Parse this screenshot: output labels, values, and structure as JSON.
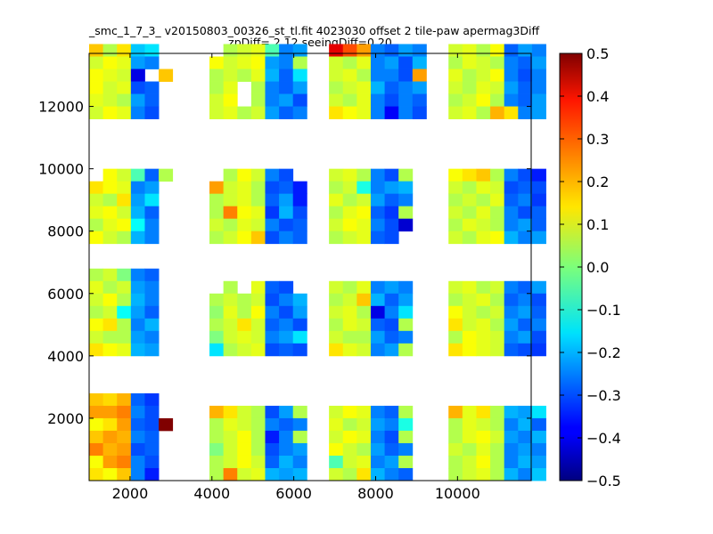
{
  "chart_data": {
    "type": "heatmap",
    "title": "_smc_1_7_3_ v20150803_00326_st_tl.fit 4023030 offset 2 tile-paw apermag3Diff",
    "subtitle": "zpDiff= 2.12 seeingDiff=0.20",
    "xlabel": "",
    "ylabel": "",
    "xlim": [
      1000,
      11800
    ],
    "ylim": [
      0,
      13700
    ],
    "x_ticks": [
      2000,
      4000,
      6000,
      8000,
      10000
    ],
    "y_ticks": [
      2000,
      4000,
      6000,
      8000,
      10000,
      12000
    ],
    "colorbar": {
      "range": [
        -0.5,
        0.5
      ],
      "ticks": [
        "0.5",
        "0.4",
        "0.3",
        "0.2",
        "0.1",
        "0.0",
        "−0.1",
        "−0.2",
        "−0.3",
        "−0.4",
        "−0.5"
      ],
      "colormap": "jet"
    },
    "grid": false,
    "cell_size": [
      340,
      400
    ],
    "chip_columns_x0": [
      1000,
      3940,
      6860,
      9780
    ],
    "chip_rows_y0": [
      0,
      4000,
      7600,
      11600
    ],
    "chips": [
      {
        "col": 0,
        "row": 0,
        "values": [
          [
            0.18,
            0.16,
            0.2,
            -0.28,
            -0.32,
            null
          ],
          [
            0.22,
            0.22,
            0.25,
            -0.25,
            -0.3,
            null
          ],
          [
            0.12,
            0.15,
            0.22,
            -0.28,
            -0.3,
            0.5
          ],
          [
            0.18,
            0.22,
            0.2,
            -0.25,
            -0.28,
            null
          ],
          [
            0.25,
            0.2,
            0.22,
            -0.3,
            -0.28,
            null
          ],
          [
            0.12,
            0.22,
            0.25,
            -0.25,
            -0.3,
            null
          ],
          [
            0.15,
            0.12,
            0.18,
            -0.25,
            -0.35,
            null
          ]
        ]
      },
      {
        "col": 0,
        "row": 1,
        "values": [
          [
            0.05,
            0.08,
            0.0,
            -0.25,
            -0.28,
            null
          ],
          [
            0.1,
            0.05,
            0.08,
            -0.22,
            -0.25,
            null
          ],
          [
            0.08,
            0.12,
            0.05,
            -0.2,
            -0.25,
            null
          ],
          [
            0.05,
            0.08,
            -0.12,
            -0.22,
            -0.28,
            null
          ],
          [
            0.12,
            0.15,
            0.05,
            -0.25,
            -0.2,
            null
          ],
          [
            0.08,
            0.05,
            0.05,
            -0.22,
            -0.25,
            null
          ],
          [
            0.15,
            0.12,
            0.1,
            -0.2,
            -0.22,
            null
          ]
        ]
      },
      {
        "col": 0,
        "row": 2,
        "values": [
          [
            null,
            0.12,
            0.08,
            -0.05,
            -0.28,
            0.05
          ],
          [
            0.15,
            0.12,
            0.1,
            -0.25,
            -0.22,
            null
          ],
          [
            0.08,
            0.05,
            0.15,
            -0.22,
            -0.15,
            null
          ],
          [
            0.1,
            0.12,
            0.08,
            -0.2,
            -0.28,
            null
          ],
          [
            0.05,
            0.1,
            0.12,
            -0.12,
            -0.25,
            null
          ],
          [
            0.12,
            0.08,
            0.05,
            -0.2,
            -0.25,
            null
          ]
        ]
      },
      {
        "col": 0,
        "row": 3,
        "values": [
          [
            0.18,
            0.05,
            0.15,
            -0.18,
            -0.15,
            null
          ],
          [
            0.08,
            0.12,
            0.1,
            -0.22,
            -0.25,
            null
          ],
          [
            0.12,
            0.1,
            0.08,
            -0.4,
            null,
            0.18
          ],
          [
            0.12,
            0.08,
            0.1,
            -0.3,
            -0.28,
            null
          ],
          [
            0.1,
            0.08,
            0.05,
            -0.22,
            -0.28,
            null
          ],
          [
            0.08,
            0.12,
            0.1,
            -0.25,
            -0.3,
            null
          ]
        ]
      },
      {
        "col": 1,
        "row": 0,
        "values": [
          [
            0.2,
            0.15,
            0.08,
            0.05,
            -0.3,
            -0.22,
            0.05
          ],
          [
            0.05,
            0.1,
            0.08,
            0.05,
            -0.25,
            -0.28,
            -0.25
          ],
          [
            0.05,
            0.08,
            0.12,
            0.05,
            -0.35,
            -0.25,
            0.05
          ],
          [
            0.0,
            0.08,
            0.12,
            0.05,
            -0.3,
            -0.25,
            -0.22
          ],
          [
            0.05,
            0.08,
            0.12,
            0.08,
            -0.28,
            -0.2,
            -0.25
          ],
          [
            0.05,
            0.25,
            0.08,
            0.1,
            -0.2,
            -0.22,
            -0.2
          ]
        ]
      },
      {
        "col": 1,
        "row": 1,
        "values": [
          [
            null,
            0.05,
            null,
            0.1,
            -0.28,
            -0.3,
            null
          ],
          [
            0.05,
            0.08,
            0.05,
            0.08,
            -0.3,
            -0.25,
            -0.2
          ],
          [
            0.02,
            0.1,
            0.05,
            0.12,
            -0.25,
            -0.3,
            -0.22
          ],
          [
            0.05,
            0.08,
            0.15,
            0.08,
            -0.28,
            -0.25,
            -0.3
          ],
          [
            0.0,
            0.08,
            0.1,
            0.08,
            -0.25,
            -0.22,
            -0.15
          ],
          [
            -0.15,
            0.05,
            0.08,
            0.1,
            -0.3,
            -0.28,
            -0.3
          ]
        ]
      },
      {
        "col": 1,
        "row": 2,
        "values": [
          [
            null,
            0.05,
            0.12,
            0.08,
            -0.25,
            -0.3,
            null
          ],
          [
            0.22,
            0.08,
            0.1,
            0.05,
            -0.3,
            -0.28,
            -0.35
          ],
          [
            0.05,
            0.08,
            0.1,
            0.05,
            -0.28,
            -0.22,
            -0.35
          ],
          [
            0.05,
            0.25,
            0.12,
            0.1,
            -0.32,
            -0.2,
            -0.3
          ],
          [
            0.08,
            0.05,
            0.1,
            0.08,
            -0.25,
            -0.3,
            -0.28
          ],
          [
            0.05,
            0.08,
            0.12,
            0.18,
            -0.3,
            -0.25,
            -0.28
          ]
        ]
      },
      {
        "col": 1,
        "row": 3,
        "values": [
          [
            null,
            0.05,
            0.08,
            0.1,
            -0.05,
            -0.25,
            -0.22
          ],
          [
            0.12,
            0.08,
            0.1,
            0.12,
            -0.22,
            -0.25,
            0.05
          ],
          [
            0.05,
            0.08,
            0.05,
            0.1,
            -0.2,
            -0.28,
            -0.15
          ],
          [
            0.05,
            0.1,
            null,
            0.05,
            -0.25,
            -0.28,
            -0.22
          ],
          [
            0.08,
            0.12,
            null,
            0.05,
            -0.25,
            -0.22,
            -0.3
          ],
          [
            0.08,
            0.1,
            0.05,
            0.08,
            -0.22,
            -0.28,
            -0.25
          ]
        ]
      },
      {
        "col": 2,
        "row": 0,
        "values": [
          [
            0.08,
            0.12,
            0.1,
            -0.25,
            -0.28,
            0.05,
            null
          ],
          [
            0.1,
            0.05,
            0.08,
            -0.22,
            -0.25,
            -0.1,
            null
          ],
          [
            0.08,
            0.12,
            0.1,
            -0.25,
            -0.3,
            0.05,
            null
          ],
          [
            0.12,
            0.08,
            0.05,
            -0.22,
            -0.28,
            -0.25,
            null
          ],
          [
            -0.05,
            0.08,
            0.1,
            -0.25,
            -0.22,
            0.05,
            null
          ],
          [
            0.08,
            0.05,
            0.15,
            -0.2,
            -0.25,
            -0.28,
            null
          ]
        ]
      },
      {
        "col": 2,
        "row": 1,
        "values": [
          [
            0.08,
            0.05,
            0.1,
            -0.25,
            -0.22,
            -0.25,
            null
          ],
          [
            0.05,
            0.08,
            0.18,
            -0.2,
            -0.28,
            -0.22,
            null
          ],
          [
            0.08,
            0.1,
            0.05,
            -0.4,
            -0.25,
            -0.15,
            null
          ],
          [
            0.05,
            0.1,
            0.08,
            -0.28,
            -0.3,
            0.05,
            null
          ],
          [
            0.08,
            0.05,
            0.05,
            -0.22,
            -0.28,
            -0.25,
            null
          ],
          [
            0.15,
            0.1,
            0.08,
            -0.25,
            -0.22,
            0.05,
            null
          ]
        ]
      },
      {
        "col": 2,
        "row": 2,
        "values": [
          [
            0.08,
            0.1,
            0.05,
            -0.25,
            -0.3,
            0.05,
            null
          ],
          [
            0.05,
            0.08,
            -0.1,
            -0.25,
            -0.22,
            -0.2,
            null
          ],
          [
            0.1,
            0.05,
            0.08,
            -0.22,
            -0.28,
            -0.25,
            null
          ],
          [
            0.05,
            0.1,
            0.12,
            -0.28,
            -0.32,
            0.05,
            null
          ],
          [
            0.08,
            0.12,
            0.1,
            -0.25,
            -0.3,
            -0.42,
            null
          ],
          [
            0.05,
            0.08,
            0.1,
            -0.28,
            -0.3,
            null,
            null
          ]
        ]
      },
      {
        "col": 2,
        "row": 3,
        "values": [
          [
            0.4,
            0.3,
            0.22,
            -0.25,
            -0.28,
            -0.22,
            -0.25
          ],
          [
            0.08,
            0.05,
            0.1,
            -0.25,
            -0.22,
            -0.3,
            -0.2
          ],
          [
            0.08,
            0.1,
            0.05,
            -0.25,
            -0.25,
            -0.3,
            0.22
          ],
          [
            0.05,
            0.08,
            0.1,
            -0.2,
            -0.28,
            -0.25,
            -0.22
          ],
          [
            0.08,
            0.05,
            0.1,
            -0.25,
            -0.3,
            -0.25,
            -0.28
          ],
          [
            0.15,
            0.12,
            0.1,
            -0.25,
            -0.38,
            -0.25,
            -0.3
          ]
        ]
      },
      {
        "col": 3,
        "row": 0,
        "values": [
          [
            0.2,
            0.1,
            0.15,
            0.05,
            -0.2,
            -0.22,
            -0.15
          ],
          [
            0.05,
            0.1,
            0.08,
            0.05,
            -0.25,
            -0.2,
            -0.28
          ],
          [
            0.05,
            0.1,
            0.12,
            0.08,
            -0.22,
            -0.25,
            -0.2
          ],
          [
            0.08,
            0.05,
            0.1,
            0.05,
            -0.25,
            -0.22,
            -0.25
          ],
          [
            0.05,
            0.08,
            0.12,
            0.05,
            -0.25,
            -0.2,
            -0.22
          ],
          [
            0.05,
            0.08,
            0.1,
            0.05,
            -0.2,
            -0.25,
            -0.18
          ]
        ]
      },
      {
        "col": 3,
        "row": 1,
        "values": [
          [
            0.08,
            0.1,
            0.05,
            0.08,
            -0.25,
            -0.28,
            -0.22
          ],
          [
            0.05,
            0.08,
            0.1,
            0.05,
            -0.28,
            -0.25,
            -0.3
          ],
          [
            0.12,
            0.08,
            0.05,
            0.08,
            -0.25,
            -0.22,
            -0.28
          ],
          [
            0.15,
            0.08,
            0.1,
            0.05,
            -0.22,
            -0.28,
            -0.25
          ],
          [
            0.05,
            0.12,
            0.1,
            0.08,
            -0.25,
            -0.22,
            -0.3
          ],
          [
            0.15,
            0.12,
            0.1,
            0.08,
            -0.28,
            -0.3,
            -0.32
          ]
        ]
      },
      {
        "col": 3,
        "row": 2,
        "values": [
          [
            0.12,
            0.15,
            0.18,
            0.05,
            -0.25,
            -0.3,
            -0.35
          ],
          [
            0.08,
            0.05,
            0.1,
            0.08,
            -0.3,
            -0.28,
            -0.3
          ],
          [
            0.05,
            0.08,
            0.05,
            0.1,
            -0.28,
            -0.25,
            -0.32
          ],
          [
            0.08,
            0.05,
            0.1,
            0.05,
            -0.25,
            -0.3,
            -0.28
          ],
          [
            0.05,
            0.1,
            0.08,
            0.05,
            -0.25,
            -0.22,
            -0.28
          ],
          [
            0.08,
            0.05,
            0.1,
            0.12,
            -0.2,
            -0.25,
            -0.22
          ]
        ]
      },
      {
        "col": 3,
        "row": 3,
        "values": [
          [
            0.08,
            0.1,
            0.05,
            0.12,
            -0.28,
            -0.22,
            -0.25
          ],
          [
            0.05,
            0.1,
            0.08,
            0.05,
            -0.25,
            -0.28,
            -0.22
          ],
          [
            0.1,
            0.05,
            0.08,
            0.12,
            -0.25,
            -0.3,
            -0.25
          ],
          [
            0.08,
            0.05,
            0.1,
            0.08,
            -0.22,
            -0.28,
            -0.25
          ],
          [
            0.05,
            0.08,
            0.12,
            0.05,
            -0.25,
            -0.28,
            -0.22
          ],
          [
            0.08,
            0.1,
            0.05,
            0.2,
            0.15,
            -0.25,
            -0.22
          ]
        ]
      }
    ]
  }
}
